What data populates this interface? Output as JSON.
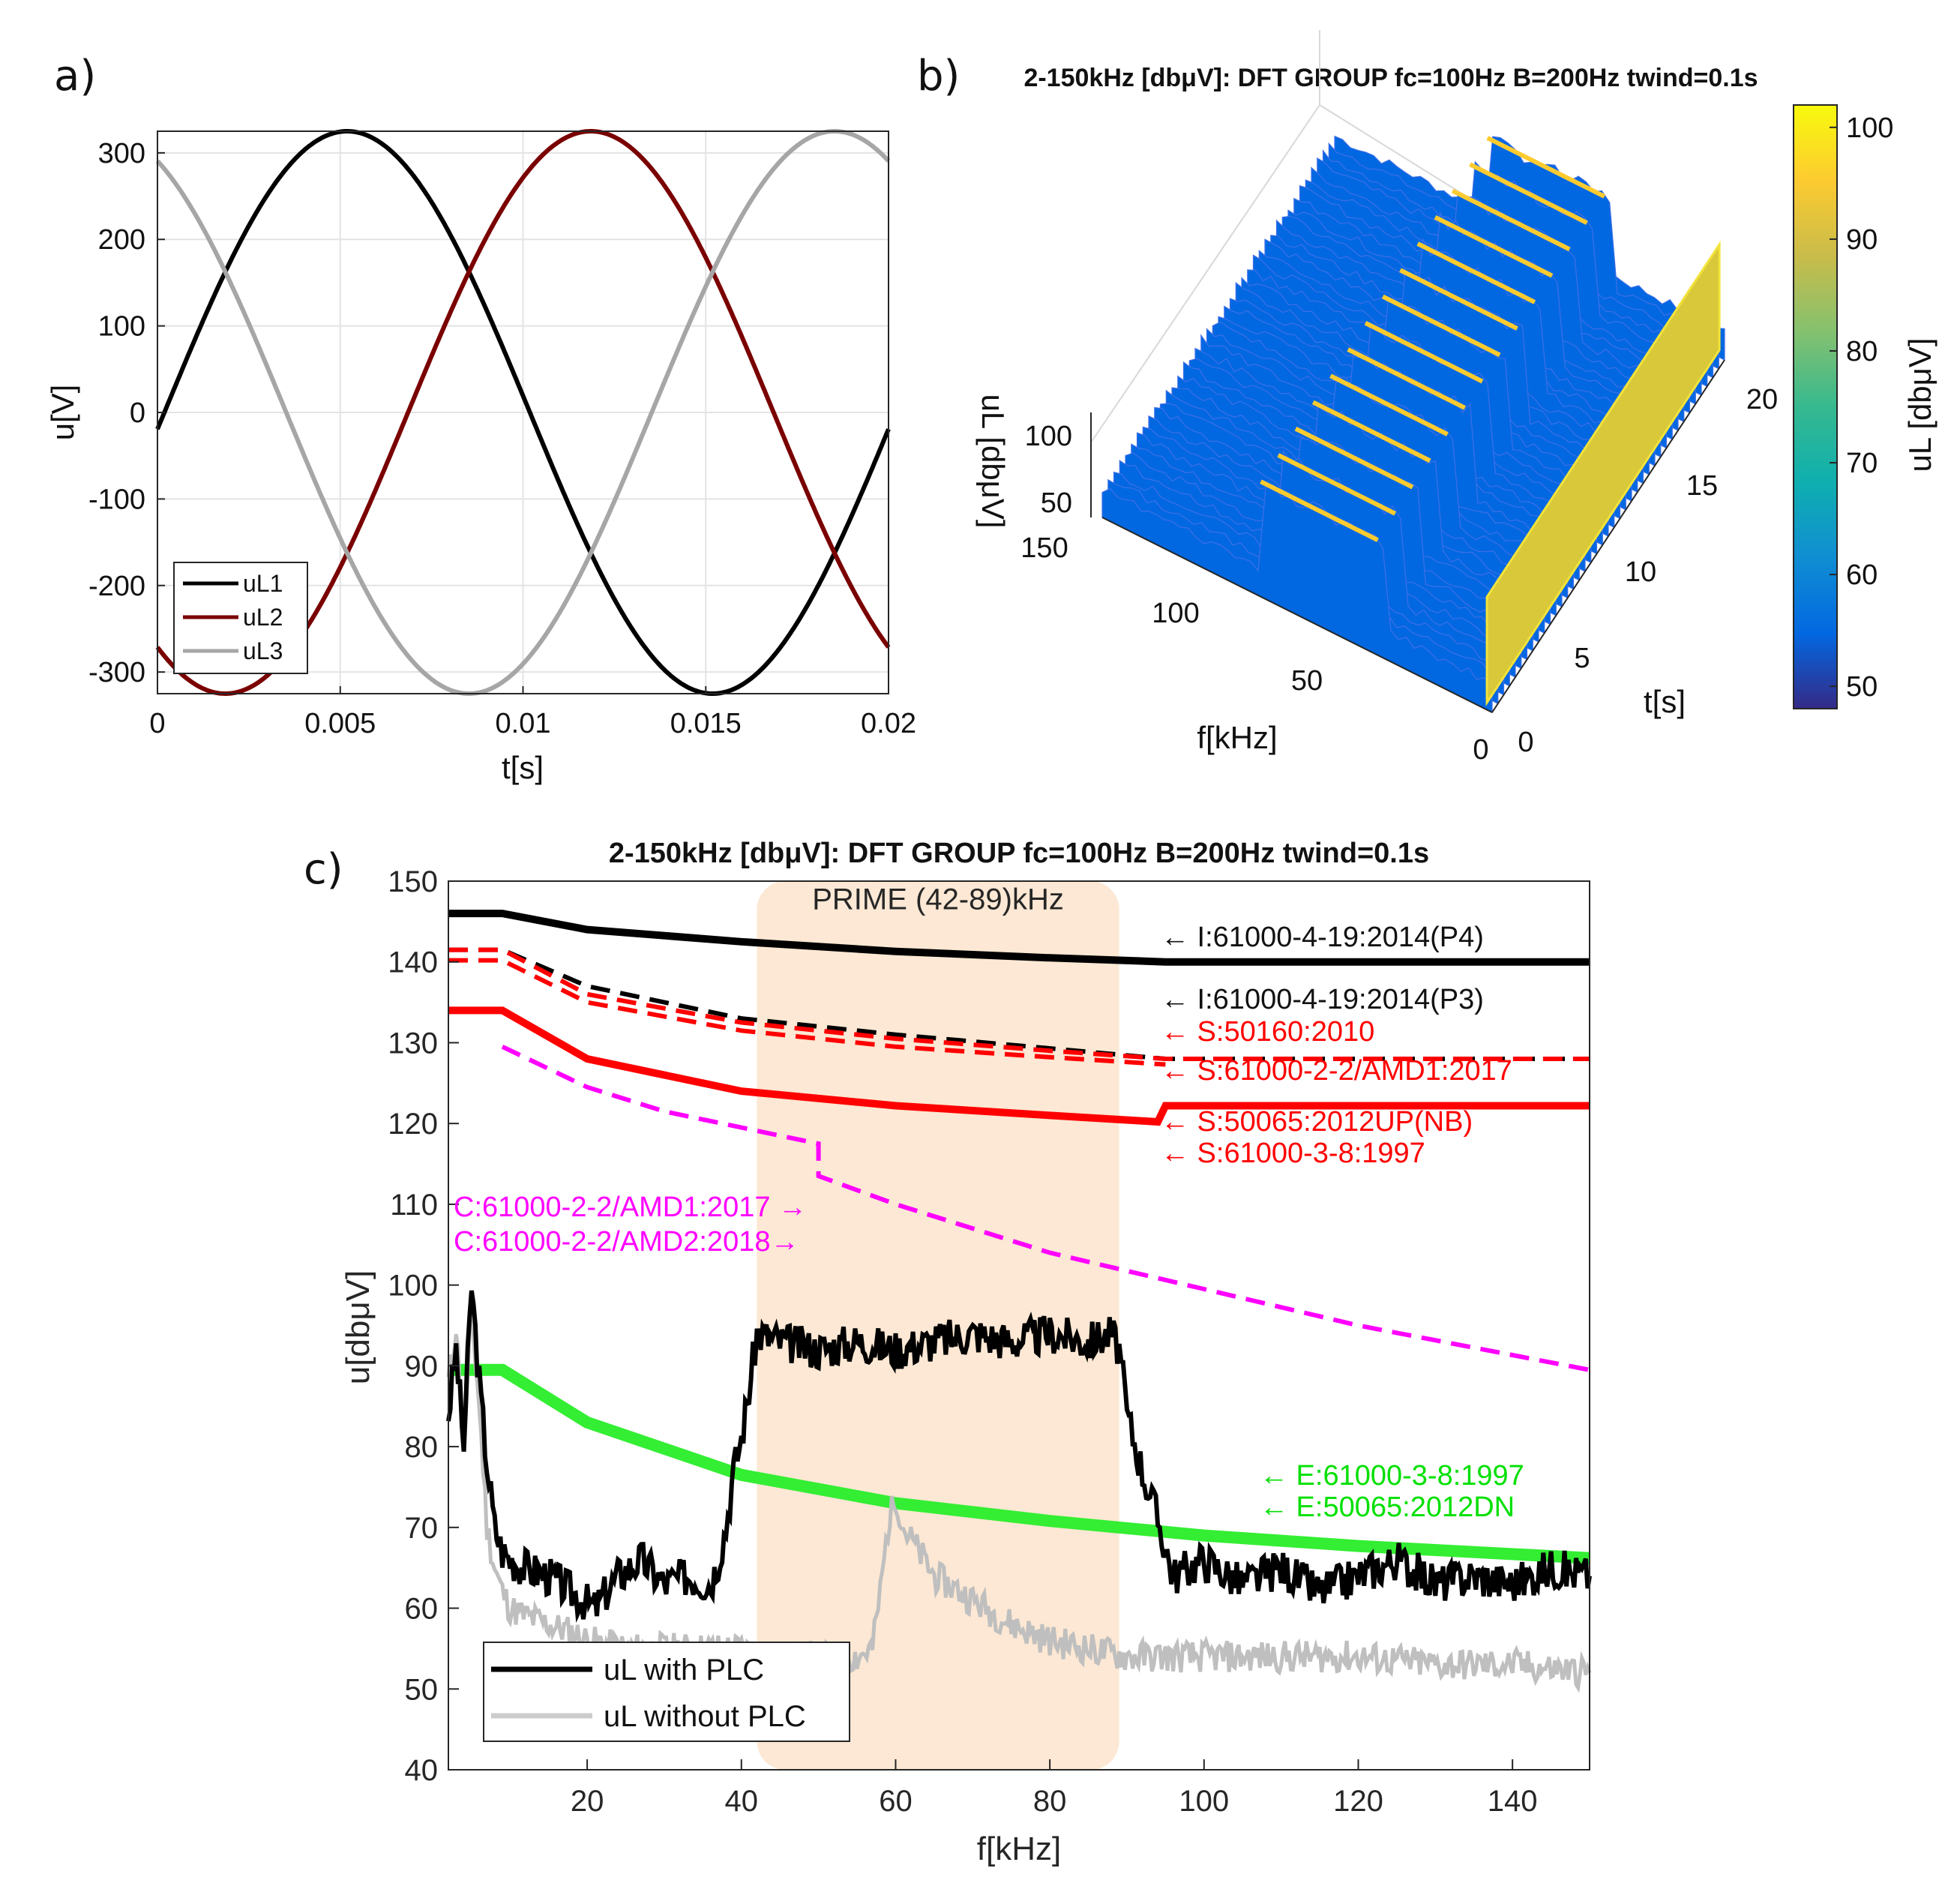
{
  "panels": {
    "a": {
      "letter": "a)"
    },
    "b": {
      "letter": "b)"
    },
    "c": {
      "letter": "c)"
    }
  },
  "chart_data": [
    {
      "id": "a",
      "type": "line",
      "title": "",
      "xlabel": "t[s]",
      "ylabel": "u[V]",
      "xlim": [
        0,
        0.02
      ],
      "ylim": [
        -325,
        325
      ],
      "xticks": [
        0,
        0.005,
        0.01,
        0.015,
        0.02
      ],
      "xtick_labels": [
        "0",
        "0.005",
        "0.01",
        "0.015",
        "0.02"
      ],
      "yticks": [
        300,
        200,
        100,
        0,
        -100,
        -200,
        -300
      ],
      "ytick_labels": [
        "300",
        "200",
        "100",
        "0",
        "-100",
        "-200",
        "-300"
      ],
      "grid": true,
      "legend_position": "bottom-left",
      "series": [
        {
          "name": "uL1",
          "color": "#000000",
          "amplitude": 325,
          "phase_deg": -3.4,
          "freq_hz": 50
        },
        {
          "name": "uL2",
          "color": "#7a0000",
          "amplitude": 325,
          "phase_deg": -123.4,
          "freq_hz": 50
        },
        {
          "name": "uL3",
          "color": "#a6a6a6",
          "amplitude": 325,
          "phase_deg": 116.6,
          "freq_hz": 50
        }
      ]
    },
    {
      "id": "b",
      "type": "surface3d",
      "title": "2-150kHz [dbμV]: DFT GROUP fc=100Hz B=200Hz twind=0.1s",
      "xlabel": "f[kHz]",
      "ylabel": "t[s]",
      "zlabel": "uL [dbμV]",
      "xticks": [
        0,
        50,
        100,
        150
      ],
      "xtick_labels": [
        "0",
        "50",
        "100",
        "150"
      ],
      "yticks": [
        0,
        5,
        10,
        15,
        20
      ],
      "ytick_labels": [
        "0",
        "5",
        "10",
        "15",
        "20"
      ],
      "zticks": [
        50,
        100
      ],
      "ztick_labels": [
        "50",
        "100"
      ],
      "colorbar": {
        "ticks": [
          100,
          90,
          80,
          70,
          60,
          50
        ],
        "tick_labels": [
          "100",
          "90",
          "80",
          "70",
          "60",
          "50"
        ],
        "range": [
          48,
          102
        ],
        "colormap": [
          "#352a87",
          "#0268e1",
          "#108ed2",
          "#0fafaf",
          "#36b98f",
          "#85c16f",
          "#c9bc4a",
          "#fdcb30",
          "#f8fa0d"
        ]
      },
      "surface_summary": {
        "base_level": 55,
        "plc_band_khz": [
          42,
          89
        ],
        "plc_level": 90,
        "edge_ridge_level": 92
      }
    },
    {
      "id": "c",
      "type": "line",
      "title": "2-150kHz [dbμV]: DFT GROUP fc=100Hz B=200Hz twind=0.1s",
      "xlabel": "f[kHz]",
      "ylabel": "u[dbμV]",
      "xlim": [
        2,
        150
      ],
      "ylim": [
        40,
        150
      ],
      "xticks": [
        20,
        40,
        60,
        80,
        100,
        120,
        140
      ],
      "xtick_labels": [
        "20",
        "40",
        "60",
        "80",
        "100",
        "120",
        "140"
      ],
      "yticks": [
        150,
        140,
        130,
        120,
        110,
        100,
        90,
        80,
        70,
        60,
        50,
        40
      ],
      "ytick_labels": [
        "150",
        "140",
        "130",
        "120",
        "110",
        "100",
        "90",
        "80",
        "70",
        "60",
        "50",
        "40"
      ],
      "band": {
        "label": "PRIME (42-89)kHz",
        "from": 42,
        "to": 89,
        "color": "#fce4cc"
      },
      "limit_annotations": [
        {
          "text": "← I:61000-4-19:2014(P4)",
          "color": "#111111",
          "y": 142
        },
        {
          "text": "← I:61000-4-19:2014(P3)",
          "color": "#111111",
          "y": 134
        },
        {
          "text": "← S:50160:2010",
          "color": "#ff0000",
          "y": 130
        },
        {
          "text": "← S:61000-2-2/AMD1:2017",
          "color": "#ff0000",
          "y": 126
        },
        {
          "text": "← S:50065:2012UP(NB)",
          "color": "#ff0000",
          "y": 120
        },
        {
          "text": "← S:61000-3-8:1997",
          "color": "#ff0000",
          "y": 116
        },
        {
          "text": "C:61000-2-2/AMD1:2017 →",
          "color": "#ff00ff",
          "y": 110
        },
        {
          "text": "C:61000-2-2/AMD2:2018→",
          "color": "#ff00ff",
          "y": 105
        },
        {
          "text": "← E:61000-3-8:1997",
          "color": "#00e000",
          "y": 76
        },
        {
          "text": "← E:50065:2012DN",
          "color": "#00e000",
          "y": 72
        }
      ],
      "limit_series": [
        {
          "name": "I:61000-4-19:2014(P4)",
          "color": "#000000",
          "style": "solid",
          "x": [
            2,
            9,
            20,
            40,
            60,
            80,
            95,
            150
          ],
          "y": [
            146,
            146,
            144,
            142.5,
            141.3,
            140.5,
            140,
            140
          ]
        },
        {
          "name": "I:61000-4-19:2014(P3)",
          "color": "#000000",
          "style": "dash",
          "x": [
            2,
            9,
            20,
            40,
            60,
            80,
            95,
            150
          ],
          "y": [
            141.5,
            141.5,
            137,
            133,
            131,
            129.3,
            128,
            128
          ]
        },
        {
          "name": "S:50160:2010",
          "color": "#ff0000",
          "style": "dash",
          "x": [
            2,
            9,
            20,
            40,
            60,
            80,
            95,
            150
          ],
          "y": [
            141.5,
            141.5,
            136,
            132.5,
            130.5,
            129,
            128,
            128
          ]
        },
        {
          "name": "S:61000-2-2/AMD1:2017",
          "color": "#ff0000",
          "style": "dash",
          "x": [
            2,
            9,
            20,
            40,
            60,
            80,
            95
          ],
          "y": [
            140.2,
            140.2,
            135,
            131.5,
            129.5,
            128.2,
            127.3
          ]
        },
        {
          "name": "S:50065:2012UP(NB)",
          "color": "#ff0000",
          "style": "solid",
          "x": [
            2,
            9,
            20,
            40,
            60,
            80,
            94,
            95,
            150
          ],
          "y": [
            134,
            134,
            128,
            124,
            122.2,
            121,
            120.2,
            122.2,
            122.2
          ]
        },
        {
          "name": "C:61000-2-2/AMD1/AMD2",
          "color": "#ff00ff",
          "style": "dash",
          "x": [
            9,
            20,
            30,
            40,
            50,
            50,
            60,
            80,
            100,
            120,
            150
          ],
          "y": [
            129.5,
            124.5,
            121.5,
            119.5,
            117.5,
            113.5,
            110,
            104,
            99.5,
            95,
            89.5
          ]
        },
        {
          "name": "E:61000-3-8:1997 / E:50065:2012DN",
          "color": "#33ee33",
          "style": "solid",
          "x": [
            2,
            9,
            20,
            40,
            60,
            80,
            100,
            120,
            150
          ],
          "y": [
            89.5,
            89.5,
            83,
            76.5,
            73,
            70.8,
            69,
            67.7,
            66.2
          ]
        }
      ],
      "series": [
        {
          "name": "uL with PLC",
          "color": "#000000",
          "x": [
            2,
            3,
            4,
            5,
            6,
            7,
            8,
            9,
            10,
            12,
            15,
            18,
            21,
            24,
            27,
            30,
            33,
            36,
            37,
            38,
            39,
            40,
            41,
            42,
            45,
            50,
            55,
            60,
            65,
            70,
            75,
            80,
            85,
            88,
            89,
            90,
            92,
            94,
            96,
            100,
            105,
            110,
            115,
            120,
            125,
            130,
            135,
            140,
            145,
            150
          ],
          "y": [
            84,
            92,
            80,
            100,
            88,
            78,
            70,
            67,
            66,
            65,
            64,
            62,
            60,
            64,
            66,
            63,
            64,
            63,
            66,
            70,
            77,
            81,
            87,
            94,
            93,
            92,
            93,
            92,
            93,
            94,
            93,
            94,
            93,
            94,
            92,
            84,
            77,
            71,
            64,
            66,
            63,
            65,
            62,
            64,
            66,
            63,
            64,
            63,
            65,
            64
          ]
        },
        {
          "name": "uL without PLC",
          "color": "#bfbfbf",
          "x": [
            2,
            3,
            4,
            5,
            6,
            7,
            8,
            9,
            10,
            12,
            15,
            18,
            20,
            25,
            30,
            35,
            40,
            45,
            50,
            55,
            57,
            58,
            59,
            60,
            61,
            63,
            65,
            70,
            75,
            80,
            85,
            90,
            100,
            110,
            120,
            130,
            140,
            150
          ],
          "y": [
            88,
            95,
            80,
            97,
            85,
            70,
            65,
            62,
            60,
            59,
            58,
            57,
            56,
            55,
            55,
            55,
            55,
            54,
            54,
            54,
            55,
            62,
            70,
            74,
            70,
            67,
            64,
            61,
            58,
            56,
            55,
            54,
            54,
            54,
            54,
            53,
            53,
            52
          ]
        }
      ],
      "legend_position": "bottom-left"
    }
  ]
}
